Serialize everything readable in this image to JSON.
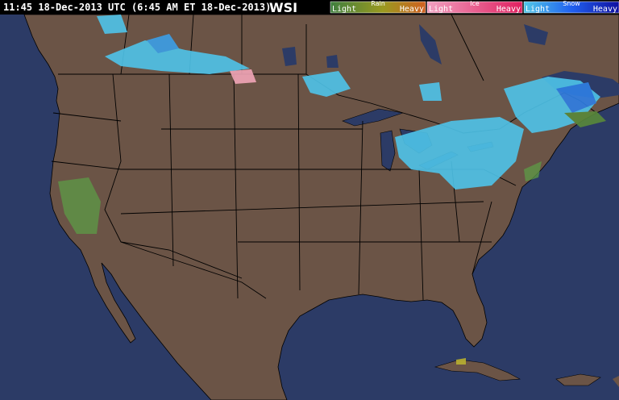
{
  "header": {
    "timestamp": "11:45 18-Dec-2013 UTC (6:45 AM ET 18-Dec-2013)",
    "logo": "WSI"
  },
  "legend": [
    {
      "name": "Rain",
      "low": "Light",
      "high": "Heavy"
    },
    {
      "name": "Ice",
      "low": "Light",
      "high": "Heavy"
    },
    {
      "name": "Snow",
      "low": "Light",
      "high": "Heavy"
    }
  ]
}
